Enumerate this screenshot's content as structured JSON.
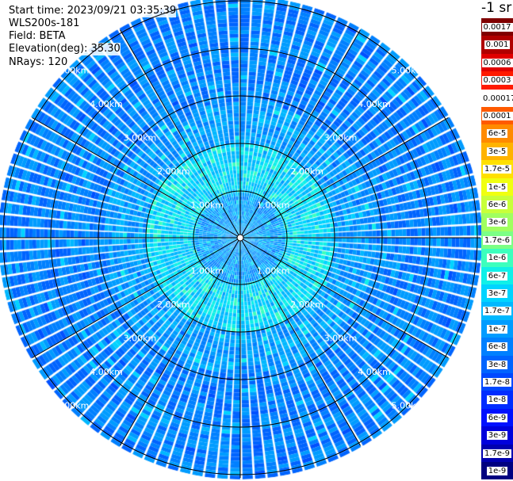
{
  "header": {
    "start_time": "Start time: 2023/09/21 03:35:39",
    "instrument": "WLS200s-181",
    "field": "Field: BETA",
    "elevation": "Elevation(deg): 35.30",
    "nrays": "NRays: 120"
  },
  "unit_label": "-1 sr",
  "range_rings": [
    "1.00km",
    "2.00km",
    "3.00km",
    "4.00km",
    "5.00km"
  ],
  "colorbar": {
    "labels": [
      "0.0017",
      "0.001",
      "0.0006",
      "0.0003",
      "0.00017",
      "0.0001",
      "6e-5",
      "3e-5",
      "1.7e-5",
      "1e-5",
      "6e-6",
      "3e-6",
      "1.7e-6",
      "1e-6",
      "6e-7",
      "3e-7",
      "1.7e-7",
      "1e-7",
      "6e-8",
      "3e-8",
      "1.7e-8",
      "1e-8",
      "6e-9",
      "3e-9",
      "1.7e-9",
      "1e-9"
    ],
    "colors": [
      "#800000",
      "#b00000",
      "#e00000",
      "#ff1a00",
      "#ffffff",
      "#ff5a00",
      "#ff8a00",
      "#ffb300",
      "#ffe000",
      "#f0ff10",
      "#c8ff3a",
      "#a0ff60",
      "#7cff85",
      "#3cffbd",
      "#10f0e8",
      "#00d4ff",
      "#00b8ff",
      "#009cff",
      "#0080ff",
      "#0064ff",
      "#0048ff",
      "#002cff",
      "#0010ff",
      "#0000dc",
      "#0000b0",
      "#000080"
    ]
  }
}
